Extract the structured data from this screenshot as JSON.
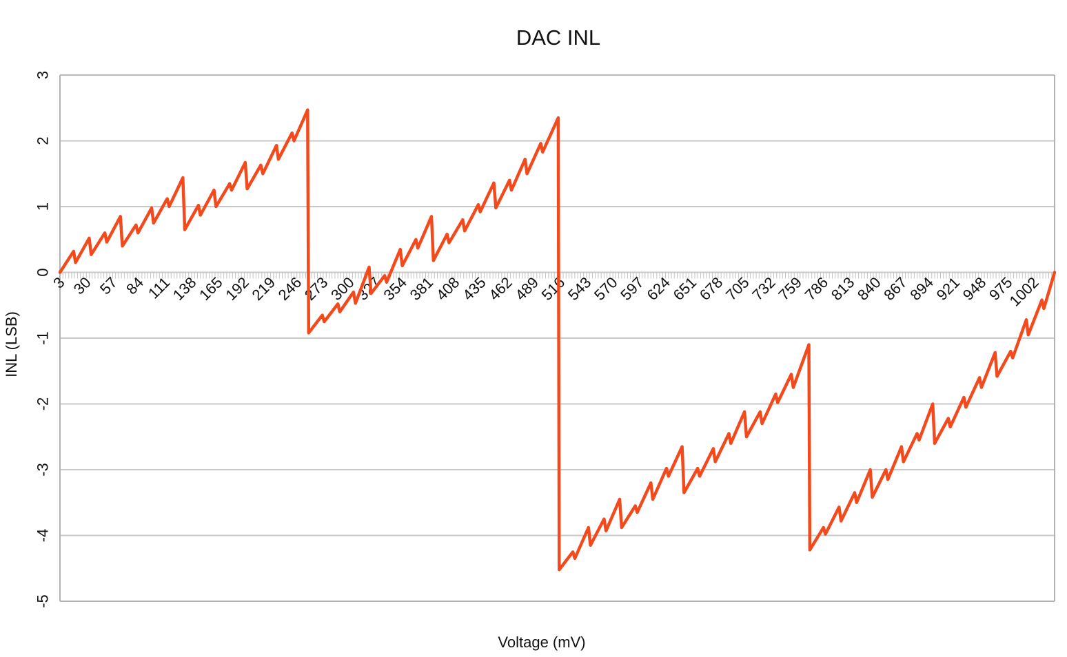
{
  "chart_data": {
    "type": "line",
    "title": "DAC INL",
    "xlabel": "Voltage (mV)",
    "ylabel": "INL (LSB)",
    "ylim": [
      -5,
      3
    ],
    "yticks": [
      3,
      2,
      1,
      0,
      -1,
      -2,
      -3,
      -4,
      -5
    ],
    "xticks": [
      "3",
      "30",
      "57",
      "84",
      "111",
      "138",
      "165",
      "192",
      "219",
      "246",
      "273",
      "300",
      "327",
      "354",
      "381",
      "408",
      "435",
      "462",
      "489",
      "516",
      "543",
      "570",
      "597",
      "624",
      "651",
      "678",
      "705",
      "732",
      "759",
      "786",
      "813",
      "840",
      "867",
      "894",
      "921",
      "948",
      "975",
      "1002"
    ],
    "xlim": [
      3,
      1023
    ],
    "grid": true,
    "legend": "none",
    "colors": {
      "line": "#f24a1c",
      "grid": "#c8c8c8",
      "axis": "#b3b3b3"
    },
    "series": [
      {
        "values": [
          [
            3,
            0.0
          ],
          [
            17,
            0.32
          ],
          [
            19,
            0.15
          ],
          [
            33,
            0.52
          ],
          [
            35,
            0.27
          ],
          [
            49,
            0.6
          ],
          [
            51,
            0.46
          ],
          [
            65,
            0.85
          ],
          [
            67,
            0.4
          ],
          [
            81,
            0.72
          ],
          [
            83,
            0.6
          ],
          [
            97,
            0.98
          ],
          [
            99,
            0.75
          ],
          [
            113,
            1.12
          ],
          [
            115,
            1.0
          ],
          [
            129,
            1.44
          ],
          [
            131,
            0.65
          ],
          [
            145,
            1.02
          ],
          [
            147,
            0.87
          ],
          [
            161,
            1.25
          ],
          [
            163,
            1.0
          ],
          [
            177,
            1.35
          ],
          [
            179,
            1.25
          ],
          [
            193,
            1.67
          ],
          [
            195,
            1.27
          ],
          [
            209,
            1.63
          ],
          [
            211,
            1.5
          ],
          [
            225,
            1.93
          ],
          [
            227,
            1.72
          ],
          [
            241,
            2.12
          ],
          [
            243,
            2.0
          ],
          [
            257,
            2.47
          ],
          [
            258,
            -0.92
          ],
          [
            272,
            -0.65
          ],
          [
            274,
            -0.75
          ],
          [
            288,
            -0.48
          ],
          [
            290,
            -0.6
          ],
          [
            304,
            -0.3
          ],
          [
            306,
            -0.47
          ],
          [
            320,
            0.08
          ],
          [
            322,
            -0.32
          ],
          [
            336,
            -0.05
          ],
          [
            338,
            -0.15
          ],
          [
            352,
            0.35
          ],
          [
            354,
            0.1
          ],
          [
            368,
            0.5
          ],
          [
            370,
            0.37
          ],
          [
            384,
            0.85
          ],
          [
            386,
            0.18
          ],
          [
            400,
            0.58
          ],
          [
            402,
            0.45
          ],
          [
            416,
            0.8
          ],
          [
            418,
            0.63
          ],
          [
            432,
            1.03
          ],
          [
            434,
            0.92
          ],
          [
            448,
            1.36
          ],
          [
            450,
            0.98
          ],
          [
            464,
            1.4
          ],
          [
            466,
            1.25
          ],
          [
            480,
            1.72
          ],
          [
            482,
            1.5
          ],
          [
            496,
            1.96
          ],
          [
            498,
            1.83
          ],
          [
            514,
            2.35
          ],
          [
            515,
            -4.52
          ],
          [
            529,
            -4.25
          ],
          [
            531,
            -4.35
          ],
          [
            545,
            -3.88
          ],
          [
            547,
            -4.15
          ],
          [
            561,
            -3.75
          ],
          [
            563,
            -3.93
          ],
          [
            577,
            -3.45
          ],
          [
            579,
            -3.88
          ],
          [
            593,
            -3.55
          ],
          [
            595,
            -3.65
          ],
          [
            609,
            -3.2
          ],
          [
            611,
            -3.45
          ],
          [
            625,
            -2.98
          ],
          [
            627,
            -3.1
          ],
          [
            641,
            -2.65
          ],
          [
            643,
            -3.35
          ],
          [
            657,
            -2.98
          ],
          [
            659,
            -3.1
          ],
          [
            673,
            -2.68
          ],
          [
            675,
            -2.88
          ],
          [
            689,
            -2.45
          ],
          [
            691,
            -2.6
          ],
          [
            705,
            -2.12
          ],
          [
            707,
            -2.5
          ],
          [
            721,
            -2.12
          ],
          [
            723,
            -2.3
          ],
          [
            737,
            -1.85
          ],
          [
            739,
            -1.98
          ],
          [
            753,
            -1.55
          ],
          [
            755,
            -1.75
          ],
          [
            771,
            -1.1
          ],
          [
            772,
            -4.22
          ],
          [
            786,
            -3.88
          ],
          [
            788,
            -3.98
          ],
          [
            802,
            -3.57
          ],
          [
            804,
            -3.78
          ],
          [
            818,
            -3.35
          ],
          [
            820,
            -3.5
          ],
          [
            834,
            -3.0
          ],
          [
            836,
            -3.42
          ],
          [
            850,
            -3.0
          ],
          [
            852,
            -3.15
          ],
          [
            866,
            -2.65
          ],
          [
            868,
            -2.88
          ],
          [
            882,
            -2.45
          ],
          [
            884,
            -2.55
          ],
          [
            898,
            -2.0
          ],
          [
            900,
            -2.6
          ],
          [
            914,
            -2.22
          ],
          [
            916,
            -2.35
          ],
          [
            930,
            -1.9
          ],
          [
            932,
            -2.05
          ],
          [
            946,
            -1.6
          ],
          [
            948,
            -1.75
          ],
          [
            962,
            -1.22
          ],
          [
            964,
            -1.58
          ],
          [
            978,
            -1.2
          ],
          [
            980,
            -1.3
          ],
          [
            994,
            -0.72
          ],
          [
            996,
            -0.95
          ],
          [
            1010,
            -0.42
          ],
          [
            1012,
            -0.55
          ],
          [
            1023,
            0.0
          ]
        ]
      }
    ]
  }
}
